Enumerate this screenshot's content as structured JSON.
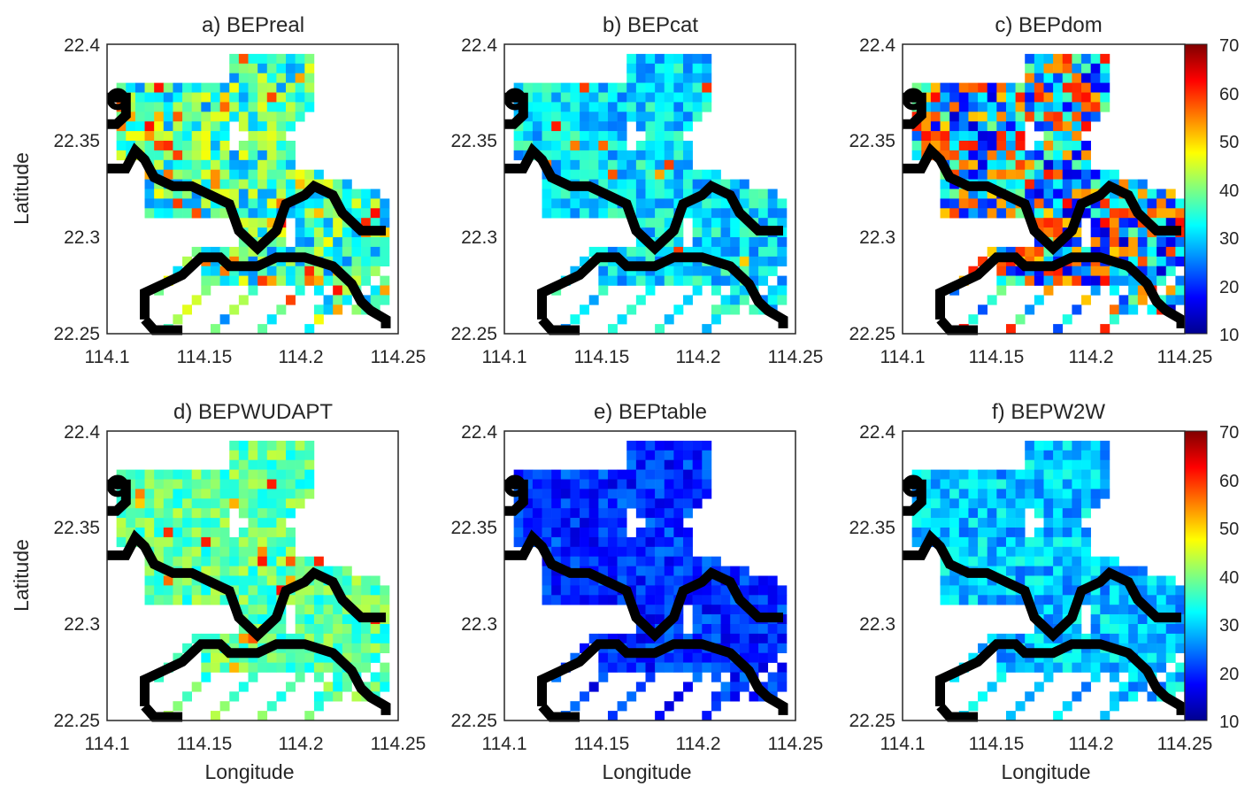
{
  "chart_data": {
    "type": "heatmap",
    "shared": {
      "xlabel": "Longitude",
      "ylabel": "Latitude",
      "x_ticks": [
        "114.1",
        "114.15",
        "114.2",
        "114.25"
      ],
      "y_ticks": [
        "22.25",
        "22.3",
        "22.35",
        "22.4"
      ],
      "xlim": [
        114.1,
        114.25
      ],
      "ylim": [
        22.25,
        22.4
      ],
      "colormap": "jet",
      "color_range": [
        10,
        70
      ],
      "colorbar_ticks": [
        "10",
        "20",
        "30",
        "40",
        "50",
        "60",
        "70"
      ],
      "coastline_color": "#000000",
      "grid": false
    },
    "panels": [
      {
        "id": "a",
        "title": "a) BEPreal",
        "mean": 36,
        "spread": 11,
        "hot_fraction": 0.1,
        "seed": 11
      },
      {
        "id": "b",
        "title": "b) BEPcat",
        "mean": 31,
        "spread": 7,
        "hot_fraction": 0.02,
        "seed": 23
      },
      {
        "id": "c",
        "title": "c) BEPdom",
        "mean": 27,
        "spread": 13,
        "hot_fraction": 0.35,
        "seed": 37
      },
      {
        "id": "d",
        "title": "d) BEPWUDAPT",
        "mean": 38,
        "spread": 6,
        "hot_fraction": 0.03,
        "seed": 41
      },
      {
        "id": "e",
        "title": "e) BEPtable",
        "mean": 20,
        "spread": 5,
        "hot_fraction": 0.0,
        "seed": 53
      },
      {
        "id": "f",
        "title": "f) BEPW2W",
        "mean": 29,
        "spread": 6,
        "hot_fraction": 0.0,
        "seed": 67
      }
    ]
  }
}
